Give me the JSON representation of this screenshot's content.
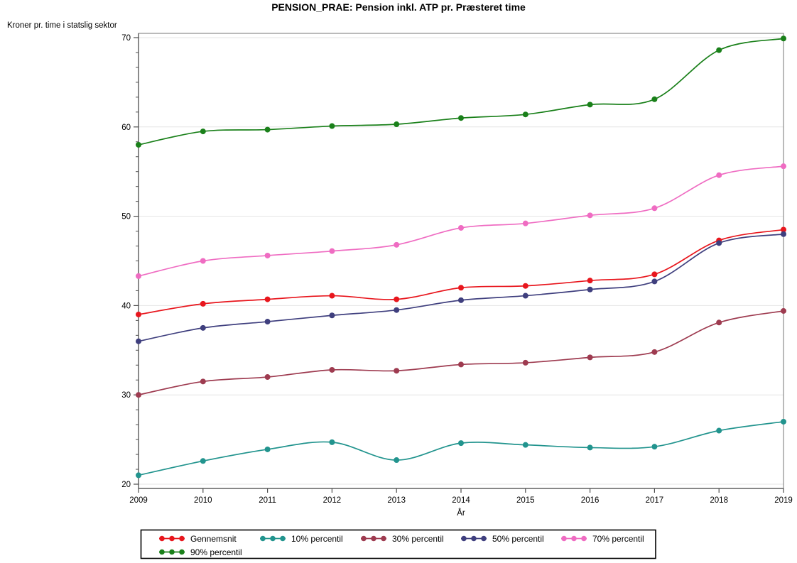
{
  "chart_data": {
    "type": "line",
    "title": "PENSION_PRAE: Pension inkl. ATP pr. Præsteret time",
    "ylabel": "Kroner pr. time i statslig sektor",
    "xlabel": "År",
    "x": [
      "2009",
      "2010",
      "2011",
      "2012",
      "2013",
      "2014",
      "2015",
      "2016",
      "2017",
      "2018",
      "2019"
    ],
    "ylim": [
      20,
      70
    ],
    "yticks": [
      20,
      30,
      40,
      50,
      60,
      70
    ],
    "y_minor_ticks_per_interval": 5,
    "grid": "horizontal-major",
    "marker": "filled-circle",
    "line_style": "smooth-spline",
    "legend_position": "bottom",
    "legend_rows": [
      [
        "Gennemsnit",
        "10% percentil",
        "30% percentil",
        "50% percentil",
        "70% percentil"
      ],
      [
        "90% percentil"
      ]
    ],
    "colors": {
      "grid": "#e4e4e4",
      "frame": "#8c8c8c",
      "axis": "#4d4d4d",
      "legend_border": "#000000"
    },
    "series": [
      {
        "name": "Gennemsnit",
        "color": "#e8161d",
        "values": [
          39.0,
          40.2,
          40.7,
          41.1,
          40.7,
          42.0,
          42.2,
          42.8,
          43.5,
          47.3,
          48.5
        ]
      },
      {
        "name": "10% percentil",
        "color": "#22948e",
        "values": [
          21.0,
          22.6,
          23.9,
          24.7,
          22.7,
          24.6,
          24.4,
          24.1,
          24.2,
          26.0,
          27.0
        ]
      },
      {
        "name": "30% percentil",
        "color": "#9e3b50",
        "values": [
          30.0,
          31.5,
          32.0,
          32.8,
          32.7,
          33.4,
          33.6,
          34.2,
          34.8,
          38.1,
          39.4
        ]
      },
      {
        "name": "50% percentil",
        "color": "#3f3f7e",
        "values": [
          36.0,
          37.5,
          38.2,
          38.9,
          39.5,
          40.6,
          41.1,
          41.8,
          42.7,
          47.0,
          48.0
        ]
      },
      {
        "name": "70% percentil",
        "color": "#ef6cc2",
        "values": [
          43.3,
          45.0,
          45.6,
          46.1,
          46.8,
          48.7,
          49.2,
          50.1,
          50.9,
          54.6,
          55.6
        ]
      },
      {
        "name": "90% percentil",
        "color": "#1a801a",
        "values": [
          58.0,
          59.5,
          59.7,
          60.1,
          60.3,
          61.0,
          61.4,
          62.5,
          63.1,
          68.6,
          69.9
        ]
      }
    ]
  }
}
